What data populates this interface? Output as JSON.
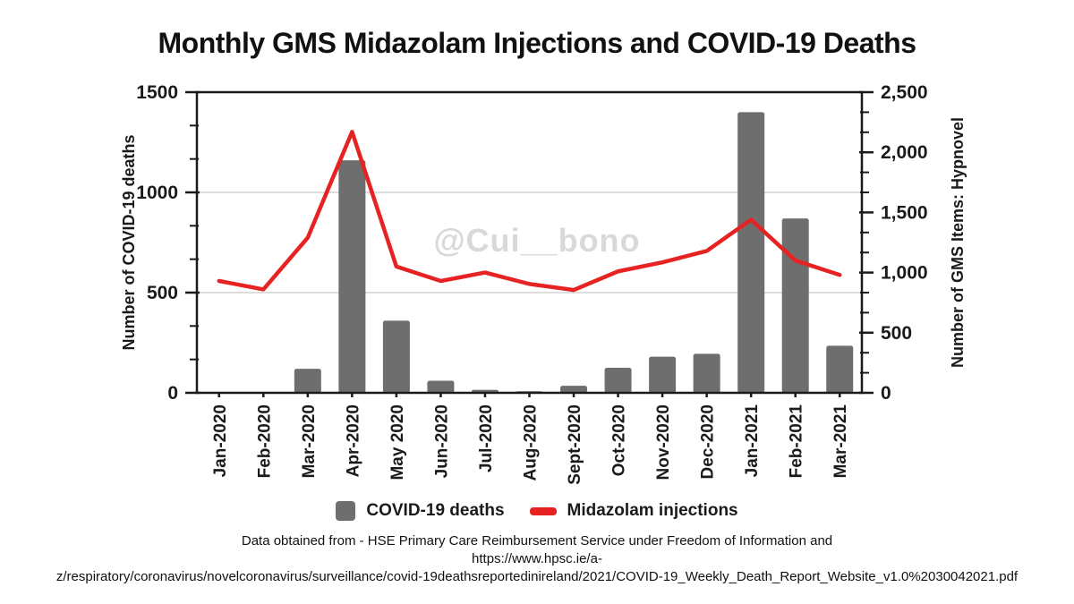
{
  "title": "Monthly GMS Midazolam Injections and COVID-19 Deaths",
  "watermark": "@Cui__bono",
  "legend": [
    {
      "label": "COVID-19 deaths",
      "marker": "gray-square",
      "color": "#6e6e6e"
    },
    {
      "label": "Midazolam injections",
      "marker": "red-dash",
      "color": "#e62222"
    }
  ],
  "footer": {
    "line1": "Data obtained from -  HSE Primary Care Reimbursement Service under Freedom of Information and",
    "line2": "https://www.hpsc.ie/a-",
    "line3": "z/respiratory/coronavirus/novelcoronavirus/surveillance/covid-19deathsreportedinireland/2021/COVID-19_Weekly_Death_Report_Website_v1.0%2030042021.pdf"
  },
  "chart_data": {
    "type": "bar",
    "subtype": "bar-line combo, dual y-axes",
    "title": "Monthly GMS Midazolam Injections and COVID-19 Deaths",
    "categories": [
      "Jan-2020",
      "Feb-2020",
      "Mar-2020",
      "Apr-2020",
      "May 2020",
      "Jun-2020",
      "Jul-2020",
      "Aug-2020",
      "Sept-2020",
      "Oct-2020",
      "Nov-2020",
      "Dec-2020",
      "Jan-2021",
      "Feb-2021",
      "Mar-2021"
    ],
    "series": [
      {
        "name": "COVID-19 deaths",
        "type": "bar",
        "axis": "left",
        "color": "#6e6e6e",
        "values": [
          0,
          0,
          120,
          1160,
          360,
          60,
          15,
          8,
          35,
          125,
          180,
          195,
          1400,
          870,
          235
        ]
      },
      {
        "name": "Midazolam injections",
        "type": "line",
        "axis": "right",
        "color": "#e62222",
        "values": [
          930,
          860,
          1290,
          2170,
          1050,
          930,
          1000,
          905,
          855,
          1010,
          1085,
          1180,
          1440,
          1100,
          980
        ]
      }
    ],
    "left_axis": {
      "label": "Number of COVID-19 deaths",
      "min": 0,
      "max": 1500,
      "tick_values": [
        0,
        500,
        1000,
        1500
      ],
      "tick_labels": [
        "0",
        "500",
        "1000",
        "1500"
      ],
      "minor_ticks_per_interval": 2
    },
    "right_axis": {
      "label": "Number of GMS Items: Hypnovel",
      "min": 0,
      "max": 2500,
      "tick_values": [
        0,
        500,
        1000,
        1500,
        2000,
        2500
      ],
      "tick_labels": [
        "0",
        "500",
        "1,000",
        "1,500",
        "2,000",
        "2,500"
      ],
      "minor_ticks_per_interval": 2
    },
    "grid": "horizontal gridlines at left-axis 500 and 1000",
    "legend_position": "bottom",
    "watermark": "@Cui__bono"
  }
}
